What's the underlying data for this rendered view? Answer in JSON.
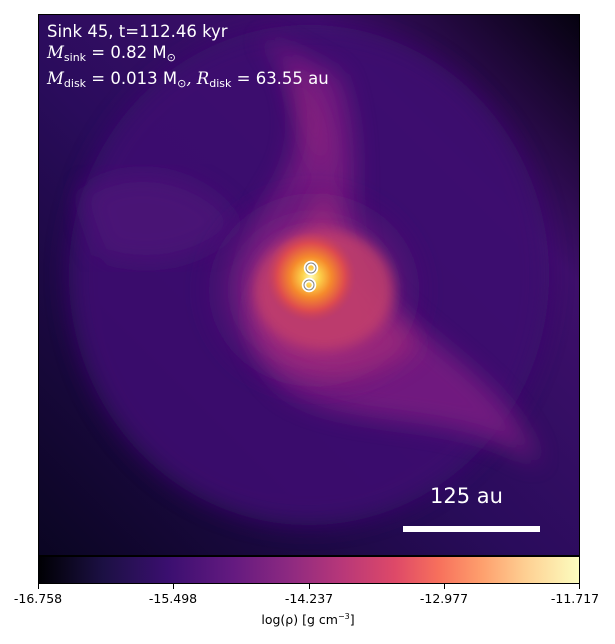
{
  "panel": {
    "line1": "Sink 45, t=112.46 kyr",
    "mass_sink_label": "M",
    "mass_sink_sub": "sink",
    "mass_sink_value": " = 0.82 M",
    "mass_sink_unit_sub": "⊙",
    "mass_disk_label": "M",
    "mass_disk_sub": "disk",
    "mass_disk_value": " = 0.013 M",
    "mass_disk_unit_sub": "⊙",
    "radius_disk_label": ", R",
    "radius_disk_sub": "disk",
    "radius_disk_value": " = 63.55 au"
  },
  "scale_bar": {
    "label": "125 au"
  },
  "sinks": {
    "count": 2,
    "color": "#ffffff"
  },
  "colorbar": {
    "colormap": "inferno",
    "ticks": [
      "-16.758",
      "-15.498",
      "-14.237",
      "-12.977",
      "-11.717"
    ],
    "label_prefix": "log(ρ) [g cm",
    "label_exp": "−3",
    "label_suffix": "]"
  }
}
